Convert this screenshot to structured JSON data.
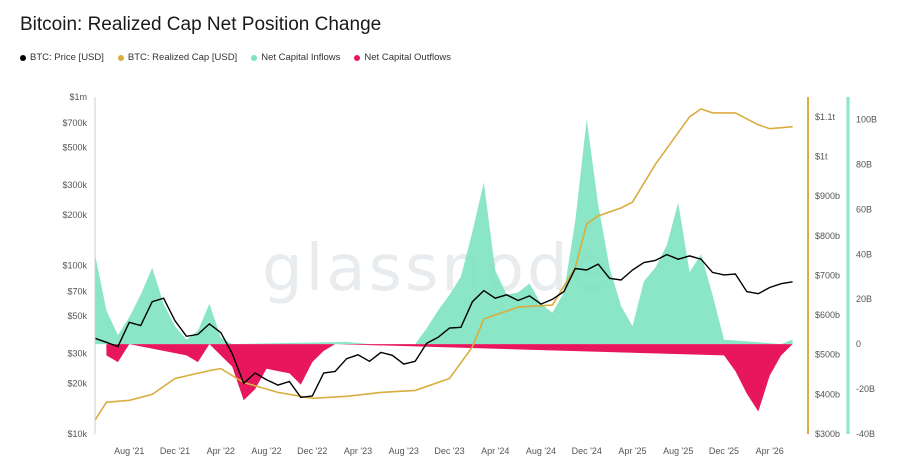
{
  "title": "Bitcoin: Realized Cap Net Position Change",
  "watermark": "glassnode",
  "colors": {
    "price": "#000000",
    "realized_cap": "#d9ad3e",
    "inflows": "#7de3c0",
    "outflows": "#e8175d",
    "right_axis_bar": "#8ae6c6"
  },
  "legend": [
    {
      "label": "BTC: Price [USD]",
      "color": "#000000"
    },
    {
      "label": "BTC: Realized Cap [USD]",
      "color": "#d9ad3e"
    },
    {
      "label": "Net Capital Inflows",
      "color": "#7de3c0"
    },
    {
      "label": "Net Capital Outflows",
      "color": "#e8175d"
    }
  ],
  "chart_data": {
    "type": "line",
    "title": "Bitcoin: Realized Cap Net Position Change",
    "legend_placement": "top-left",
    "grid": false,
    "x_range": [
      "2021-05",
      "2026-07"
    ],
    "x_ticks": [
      "Aug '21",
      "Dec '21",
      "Apr '22",
      "Aug '22",
      "Dec '22",
      "Apr '23",
      "Aug '23",
      "Dec '23",
      "Apr '24",
      "Aug '24",
      "Dec '24",
      "Apr '25",
      "Aug '25",
      "Dec '25",
      "Apr '26"
    ],
    "axes": {
      "price": {
        "scale": "log",
        "range": [
          10000,
          1000000
        ],
        "ticks": [
          "$1m",
          "$700k",
          "$500k",
          "$300k",
          "$200k",
          "$100k",
          "$70k",
          "$50k",
          "$30k",
          "$20k",
          "$10k"
        ]
      },
      "realized_cap": {
        "scale": "linear",
        "range": [
          300,
          1150
        ],
        "unit": "USD billions",
        "ticks": [
          "$1.1t",
          "$1t",
          "$900b",
          "$800b",
          "$700b",
          "$600b",
          "$500b",
          "$400b",
          "$300b"
        ]
      },
      "net_position_change": {
        "scale": "linear",
        "range": [
          -40,
          110
        ],
        "unit": "USD billions",
        "ticks": [
          "100B",
          "80B",
          "60B",
          "40B",
          "20B",
          "0",
          "-20B",
          "-40B"
        ]
      }
    },
    "series": [
      {
        "name": "BTC: Price [USD]",
        "axis": "price",
        "points": [
          [
            "2021-05",
            37000
          ],
          [
            "2021-06",
            35000
          ],
          [
            "2021-07",
            33000
          ],
          [
            "2021-08",
            46000
          ],
          [
            "2021-09",
            44000
          ],
          [
            "2021-10",
            61000
          ],
          [
            "2021-11",
            64000
          ],
          [
            "2021-12",
            47000
          ],
          [
            "2022-01",
            38000
          ],
          [
            "2022-02",
            39000
          ],
          [
            "2022-03",
            45000
          ],
          [
            "2022-04",
            40000
          ],
          [
            "2022-05",
            30000
          ],
          [
            "2022-06",
            20000
          ],
          [
            "2022-07",
            23000
          ],
          [
            "2022-08",
            21000
          ],
          [
            "2022-09",
            19500
          ],
          [
            "2022-10",
            20500
          ],
          [
            "2022-11",
            16500
          ],
          [
            "2022-12",
            16800
          ],
          [
            "2023-01",
            23000
          ],
          [
            "2023-02",
            23500
          ],
          [
            "2023-03",
            28000
          ],
          [
            "2023-04",
            29500
          ],
          [
            "2023-05",
            27000
          ],
          [
            "2023-06",
            30500
          ],
          [
            "2023-07",
            29300
          ],
          [
            "2023-08",
            26000
          ],
          [
            "2023-09",
            27000
          ],
          [
            "2023-10",
            34500
          ],
          [
            "2023-11",
            37500
          ],
          [
            "2023-12",
            42500
          ],
          [
            "2024-01",
            43000
          ],
          [
            "2024-02",
            61000
          ],
          [
            "2024-03",
            71000
          ],
          [
            "2024-04",
            64000
          ],
          [
            "2024-05",
            67000
          ],
          [
            "2024-06",
            62000
          ],
          [
            "2024-07",
            66000
          ],
          [
            "2024-08",
            59000
          ],
          [
            "2024-09",
            63000
          ],
          [
            "2024-10",
            70000
          ],
          [
            "2024-11",
            96000
          ],
          [
            "2024-12",
            94000
          ],
          [
            "2025-01",
            102000
          ],
          [
            "2025-02",
            84000
          ],
          [
            "2025-03",
            82000
          ],
          [
            "2025-04",
            94000
          ],
          [
            "2025-05",
            104000
          ],
          [
            "2025-06",
            107000
          ],
          [
            "2025-07",
            116000
          ],
          [
            "2025-08",
            109000
          ],
          [
            "2025-09",
            114000
          ],
          [
            "2025-10",
            109000
          ],
          [
            "2025-11",
            91000
          ],
          [
            "2025-12",
            88000
          ],
          [
            "2026-01",
            89000
          ],
          [
            "2026-02",
            70000
          ],
          [
            "2026-03",
            68000
          ],
          [
            "2026-04",
            74000
          ],
          [
            "2026-05",
            78000
          ],
          [
            "2026-06",
            80000
          ]
        ]
      },
      {
        "name": "BTC: Realized Cap [USD]",
        "axis": "realized_cap",
        "points": [
          [
            "2021-05",
            335
          ],
          [
            "2021-06",
            380
          ],
          [
            "2021-08",
            385
          ],
          [
            "2021-10",
            400
          ],
          [
            "2021-12",
            440
          ],
          [
            "2022-03",
            460
          ],
          [
            "2022-04",
            465
          ],
          [
            "2022-06",
            430
          ],
          [
            "2022-09",
            405
          ],
          [
            "2022-12",
            390
          ],
          [
            "2023-03",
            395
          ],
          [
            "2023-06",
            405
          ],
          [
            "2023-09",
            410
          ],
          [
            "2023-12",
            440
          ],
          [
            "2024-02",
            520
          ],
          [
            "2024-03",
            590
          ],
          [
            "2024-06",
            620
          ],
          [
            "2024-09",
            625
          ],
          [
            "2024-11",
            720
          ],
          [
            "2024-12",
            830
          ],
          [
            "2025-01",
            850
          ],
          [
            "2025-03",
            870
          ],
          [
            "2025-04",
            885
          ],
          [
            "2025-06",
            980
          ],
          [
            "2025-08",
            1060
          ],
          [
            "2025-09",
            1100
          ],
          [
            "2025-10",
            1120
          ],
          [
            "2025-11",
            1110
          ],
          [
            "2026-01",
            1110
          ],
          [
            "2026-03",
            1080
          ],
          [
            "2026-04",
            1070
          ],
          [
            "2026-06",
            1075
          ]
        ]
      },
      {
        "name": "Net Capital Inflows",
        "axis": "net_position_change",
        "points": [
          [
            "2021-05",
            40
          ],
          [
            "2021-06",
            15
          ],
          [
            "2021-07",
            4
          ],
          [
            "2021-08",
            12
          ],
          [
            "2021-09",
            22
          ],
          [
            "2021-10",
            34
          ],
          [
            "2021-11",
            18
          ],
          [
            "2021-12",
            8
          ],
          [
            "2022-01",
            2
          ],
          [
            "2022-02",
            6
          ],
          [
            "2022-03",
            18
          ],
          [
            "2022-04",
            3
          ],
          [
            "2022-05",
            0
          ],
          [
            "2023-03",
            1
          ],
          [
            "2023-05",
            0
          ],
          [
            "2023-09",
            0
          ],
          [
            "2023-10",
            7
          ],
          [
            "2023-11",
            15
          ],
          [
            "2023-12",
            22
          ],
          [
            "2024-01",
            30
          ],
          [
            "2024-02",
            50
          ],
          [
            "2024-03",
            72
          ],
          [
            "2024-04",
            33
          ],
          [
            "2024-05",
            22
          ],
          [
            "2024-06",
            23
          ],
          [
            "2024-07",
            27
          ],
          [
            "2024-08",
            18
          ],
          [
            "2024-09",
            14
          ],
          [
            "2024-10",
            23
          ],
          [
            "2024-11",
            55
          ],
          [
            "2024-12",
            100
          ],
          [
            "2025-01",
            62
          ],
          [
            "2025-02",
            34
          ],
          [
            "2025-03",
            17
          ],
          [
            "2025-04",
            8
          ],
          [
            "2025-05",
            28
          ],
          [
            "2025-06",
            34
          ],
          [
            "2025-07",
            44
          ],
          [
            "2025-08",
            63
          ],
          [
            "2025-09",
            32
          ],
          [
            "2025-10",
            40
          ],
          [
            "2025-11",
            22
          ],
          [
            "2025-12",
            2
          ],
          [
            "2026-05",
            0
          ],
          [
            "2026-06",
            2
          ]
        ]
      },
      {
        "name": "Net Capital Outflows",
        "axis": "net_position_change",
        "points": [
          [
            "2021-06",
            -5
          ],
          [
            "2021-07",
            -8
          ],
          [
            "2021-08",
            0
          ],
          [
            "2022-01",
            -5
          ],
          [
            "2022-02",
            -8
          ],
          [
            "2022-03",
            0
          ],
          [
            "2022-05",
            -10
          ],
          [
            "2022-06",
            -25
          ],
          [
            "2022-07",
            -20
          ],
          [
            "2022-08",
            -11
          ],
          [
            "2022-09",
            -12
          ],
          [
            "2022-10",
            -13
          ],
          [
            "2022-11",
            -18
          ],
          [
            "2022-12",
            -8
          ],
          [
            "2023-01",
            -3
          ],
          [
            "2023-02",
            0
          ],
          [
            "2025-12",
            -5
          ],
          [
            "2026-01",
            -12
          ],
          [
            "2026-02",
            -22
          ],
          [
            "2026-03",
            -30
          ],
          [
            "2026-04",
            -14
          ],
          [
            "2026-05",
            -5
          ],
          [
            "2026-06",
            0
          ]
        ]
      }
    ]
  }
}
